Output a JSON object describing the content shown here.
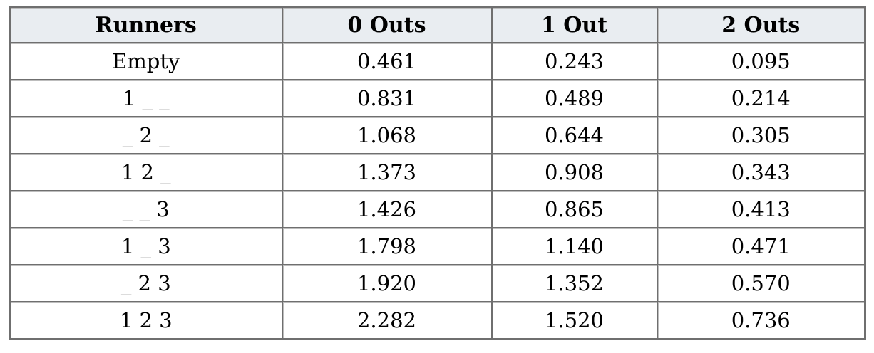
{
  "table": {
    "headers": [
      "Runners",
      "0 Outs",
      "1 Out",
      "2 Outs"
    ],
    "rows": [
      [
        "Empty",
        "0.461",
        "0.243",
        "0.095"
      ],
      [
        "1 _ _",
        "0.831",
        "0.489",
        "0.214"
      ],
      [
        "_ 2 _",
        "1.068",
        "0.644",
        "0.305"
      ],
      [
        "1 2 _",
        "1.373",
        "0.908",
        "0.343"
      ],
      [
        "_ _ 3",
        "1.426",
        "0.865",
        "0.413"
      ],
      [
        "1 _ 3",
        "1.798",
        "1.140",
        "0.471"
      ],
      [
        "_ 2 3",
        "1.920",
        "1.352",
        "0.570"
      ],
      [
        "1 2 3",
        "2.282",
        "1.520",
        "0.736"
      ]
    ]
  }
}
